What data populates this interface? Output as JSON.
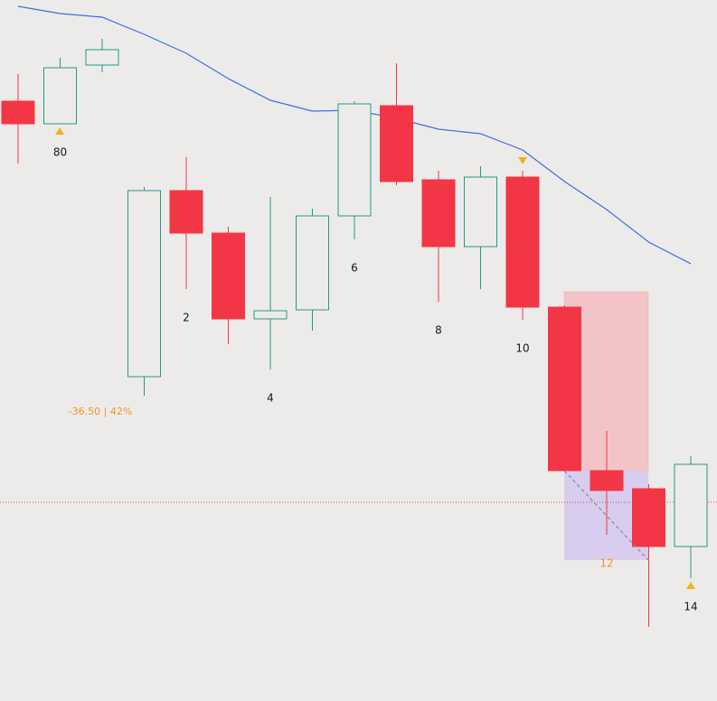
{
  "chart_data": {
    "type": "candlestick",
    "categories": [
      null,
      "80",
      null,
      null,
      "2",
      null,
      "4",
      null,
      "6",
      null,
      "8",
      null,
      "10",
      null,
      "12",
      null,
      "14"
    ],
    "open": [
      664,
      639,
      704,
      359,
      565,
      518,
      423,
      433,
      537,
      659,
      577,
      503,
      580,
      436,
      255,
      235,
      171
    ],
    "high": [
      694,
      712,
      733,
      569,
      602,
      525,
      558,
      545,
      664,
      706,
      587,
      592,
      587,
      438,
      299,
      240,
      271
    ],
    "low": [
      595,
      639,
      696,
      338,
      456,
      395,
      367,
      410,
      511,
      571,
      442,
      456,
      422,
      255,
      184,
      82,
      136
    ],
    "close": [
      639,
      701,
      721,
      565,
      518,
      423,
      432,
      537,
      661,
      575,
      503,
      580,
      436,
      255,
      233,
      171,
      262
    ],
    "up_color": "#22998a",
    "down_color": "#f23645",
    "series": [
      {
        "values": [
          769,
          761,
          757,
          738,
          717,
          689,
          665,
          653,
          654,
          645,
          633,
          628,
          610,
          575,
          544,
          508,
          484
        ],
        "color": "#3b6fe0"
      }
    ],
    "ylim": [
      0,
      776
    ],
    "annotation": "-36.50 | 42%"
  }
}
